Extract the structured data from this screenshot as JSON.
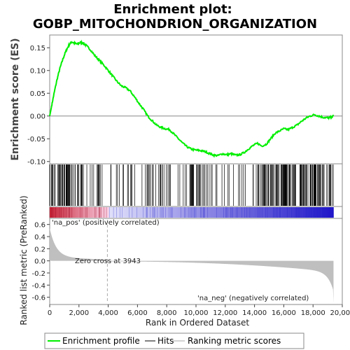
{
  "chart_data": {
    "type": "line",
    "title_line1": "Enrichment plot:",
    "title_line2": "GOBP_MITOCHONDRION_ORGANIZATION",
    "es_ylabel": "Enrichment score (ES)",
    "metric_ylabel": "Ranked list metric (PreRanked)",
    "xlabel": "Rank in Ordered Dataset",
    "xlim": [
      0,
      20000
    ],
    "es_ylim": [
      -0.105,
      0.178
    ],
    "metric_ylim": [
      -0.72,
      0.7
    ],
    "x_ticks": [
      0,
      2000,
      4000,
      6000,
      8000,
      10000,
      12000,
      14000,
      16000,
      18000,
      20000
    ],
    "x_tick_labels": [
      "0",
      "2,000",
      "4,000",
      "6,000",
      "8,000",
      "10,000",
      "12,000",
      "14,000",
      "16,000",
      "18,000",
      "20,000"
    ],
    "es_ticks": [
      -0.1,
      -0.05,
      0.0,
      0.05,
      0.1,
      0.15
    ],
    "es_tick_labels": [
      "-0.10",
      "-0.05",
      "0.00",
      "0.05",
      "0.10",
      "0.15"
    ],
    "metric_ticks": [
      -0.6,
      -0.4,
      -0.2,
      0.0,
      0.2,
      0.4,
      0.6
    ],
    "metric_tick_labels": [
      "-0.6",
      "-0.4",
      "-0.2",
      "0.0",
      "0.2",
      "0.4",
      "0.6"
    ],
    "n_ranks": 19400,
    "zero_cross_rank": 3943,
    "zero_cross_label": "Zero cross at 3943",
    "pos_label": "'na_pos' (positively correlated)",
    "neg_label": "'na_neg' (negatively correlated)",
    "enrichment_profile": {
      "x": [
        0,
        150,
        300,
        500,
        700,
        900,
        1100,
        1300,
        1500,
        1700,
        1900,
        2100,
        2300,
        2500,
        2800,
        3100,
        3400,
        3700,
        4000,
        4300,
        4600,
        4900,
        5200,
        5500,
        5800,
        6100,
        6400,
        6700,
        7000,
        7300,
        7600,
        7900,
        8200,
        8500,
        8800,
        9100,
        9400,
        9700,
        10000,
        10300,
        10600,
        10900,
        11200,
        11500,
        11800,
        12100,
        12400,
        12700,
        13000,
        13300,
        13600,
        13900,
        14200,
        14500,
        14800,
        15100,
        15400,
        15700,
        16000,
        16300,
        16600,
        16900,
        17200,
        17500,
        17800,
        18100,
        18400,
        18700,
        19000,
        19200,
        19400
      ],
      "y": [
        0.0,
        0.025,
        0.05,
        0.08,
        0.105,
        0.125,
        0.142,
        0.155,
        0.163,
        0.16,
        0.158,
        0.162,
        0.16,
        0.155,
        0.145,
        0.132,
        0.122,
        0.112,
        0.1,
        0.088,
        0.076,
        0.066,
        0.062,
        0.055,
        0.042,
        0.028,
        0.015,
        0.0,
        -0.01,
        -0.02,
        -0.025,
        -0.028,
        -0.03,
        -0.04,
        -0.05,
        -0.06,
        -0.068,
        -0.073,
        -0.075,
        -0.076,
        -0.078,
        -0.082,
        -0.086,
        -0.087,
        -0.083,
        -0.085,
        -0.083,
        -0.086,
        -0.085,
        -0.08,
        -0.072,
        -0.065,
        -0.06,
        -0.066,
        -0.062,
        -0.05,
        -0.038,
        -0.033,
        -0.028,
        -0.03,
        -0.025,
        -0.02,
        -0.012,
        -0.005,
        0.0,
        0.003,
        0.0,
        -0.003,
        -0.004,
        -0.003,
        0.0
      ]
    },
    "hits_density": [
      {
        "from": 0,
        "to": 1800,
        "density": 0.8
      },
      {
        "from": 1800,
        "to": 3600,
        "density": 0.45
      },
      {
        "from": 3600,
        "to": 4600,
        "density": 0.12
      },
      {
        "from": 4600,
        "to": 7000,
        "density": 0.22
      },
      {
        "from": 7000,
        "to": 8300,
        "density": 0.35
      },
      {
        "from": 8300,
        "to": 9500,
        "density": 0.15
      },
      {
        "from": 9500,
        "to": 11000,
        "density": 0.3
      },
      {
        "from": 11000,
        "to": 13000,
        "density": 0.25
      },
      {
        "from": 13000,
        "to": 14300,
        "density": 0.3
      },
      {
        "from": 14300,
        "to": 16000,
        "density": 0.55
      },
      {
        "from": 16000,
        "to": 19400,
        "density": 0.65
      }
    ],
    "legend": [
      "Enrichment profile",
      "Hits",
      "Ranking metric scores"
    ],
    "colors": {
      "profile": "#00ee00",
      "hits": "#000000",
      "metric": "#bfbfbf",
      "pos_text": "#cc0000",
      "neg_text": "#0000cc",
      "frame": "#888888",
      "zero_line": "#888888"
    }
  }
}
